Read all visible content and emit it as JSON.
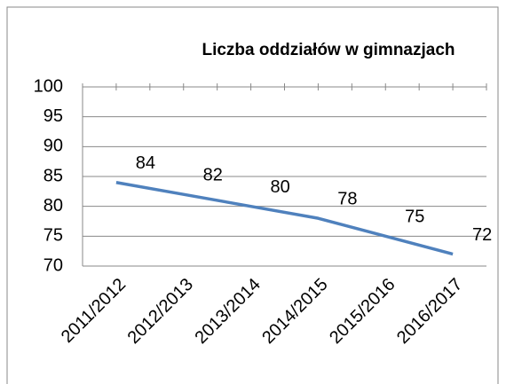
{
  "chart_data": {
    "type": "line",
    "title": "Liczba oddziałów w gimnazjach",
    "categories": [
      "2011/2012",
      "2012/2013",
      "2013/2014",
      "2014/2015",
      "2015/2016",
      "2016/2017"
    ],
    "values": [
      84,
      82,
      80,
      78,
      75,
      72
    ],
    "color": "#4f81bd",
    "ylim": [
      70,
      100
    ],
    "yticks": [
      70,
      75,
      80,
      85,
      90,
      95,
      100
    ],
    "grid": true
  }
}
